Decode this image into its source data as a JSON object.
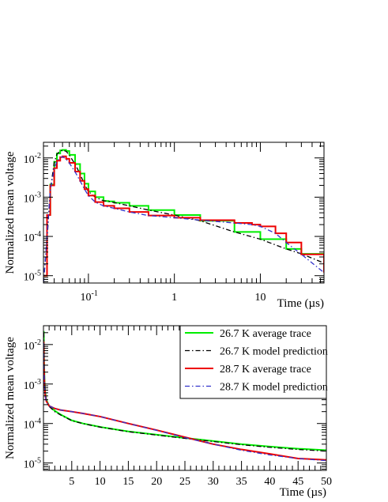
{
  "chart_data": [
    {
      "type": "line",
      "xscale": "log",
      "yscale": "log",
      "xlim": [
        0.03,
        55
      ],
      "ylim": [
        6.5e-06,
        0.025
      ],
      "xlabel": "Time (µs)",
      "ylabel": "Normalized mean voltage",
      "x_tick_labels": [
        "10^-1",
        "1",
        "10"
      ],
      "y_tick_labels": [
        "10^-5",
        "10^-4",
        "10^-3",
        "10^-2"
      ],
      "grid": false,
      "series": [
        {
          "color": "#00ee00",
          "style": "step",
          "x": [
            0.03,
            0.033,
            0.036,
            0.04,
            0.043,
            0.047,
            0.05,
            0.055,
            0.06,
            0.07,
            0.08,
            0.09,
            0.1,
            0.12,
            0.15,
            0.17,
            0.2,
            0.3,
            0.5,
            1,
            2,
            5,
            10,
            20,
            30,
            55
          ],
          "y": [
            1e-05,
            0.00035,
            0.0021,
            0.008,
            0.013,
            0.0155,
            0.016,
            0.015,
            0.012,
            0.007,
            0.004,
            0.0022,
            0.0014,
            0.001,
            0.0008,
            0.00078,
            0.00072,
            0.0006,
            0.00047,
            0.00035,
            0.00025,
            0.00013,
            8.5e-05,
            4.8e-05,
            3.6e-05,
            2.1e-05
          ]
        },
        {
          "color": "#000000",
          "style": "dash-dot",
          "x": [
            0.03,
            0.033,
            0.036,
            0.04,
            0.043,
            0.047,
            0.05,
            0.055,
            0.06,
            0.07,
            0.08,
            0.09,
            0.1,
            0.12,
            0.15,
            0.17,
            0.2,
            0.3,
            0.5,
            1,
            2,
            5,
            10,
            20,
            30,
            55
          ],
          "y": [
            6.5e-06,
            8e-05,
            0.0015,
            0.0075,
            0.0125,
            0.015,
            0.0158,
            0.0148,
            0.0118,
            0.0069,
            0.0039,
            0.0021,
            0.0014,
            0.001,
            0.00081,
            0.00079,
            0.00073,
            0.0006,
            0.00047,
            0.00035,
            0.00025,
            0.00013,
            8.5e-05,
            4.8e-05,
            3.6e-05,
            2.1e-05
          ]
        },
        {
          "color": "#ee0000",
          "style": "step",
          "x": [
            0.03,
            0.033,
            0.036,
            0.04,
            0.043,
            0.047,
            0.05,
            0.055,
            0.06,
            0.07,
            0.08,
            0.09,
            0.1,
            0.12,
            0.15,
            0.2,
            0.3,
            0.5,
            1,
            2,
            5,
            8,
            10,
            15,
            20,
            30,
            55
          ],
          "y": [
            1e-05,
            0.00035,
            0.002,
            0.0055,
            0.0085,
            0.0105,
            0.011,
            0.0095,
            0.0075,
            0.0045,
            0.0026,
            0.0016,
            0.0011,
            0.00075,
            0.0006,
            0.00052,
            0.00042,
            0.00034,
            0.0003,
            0.00026,
            0.00022,
            0.0002,
            0.00018,
            0.00012,
            7e-05,
            3.5e-05,
            1.2e-05
          ]
        },
        {
          "color": "#3333cc",
          "style": "dash-dot",
          "x": [
            0.03,
            0.033,
            0.036,
            0.04,
            0.043,
            0.047,
            0.05,
            0.055,
            0.06,
            0.07,
            0.08,
            0.09,
            0.1,
            0.12,
            0.15,
            0.2,
            0.3,
            0.5,
            1,
            2,
            5,
            8,
            10,
            15,
            20,
            30,
            55
          ],
          "y": [
            6.5e-06,
            0.0001,
            0.0015,
            0.0052,
            0.0082,
            0.0102,
            0.0108,
            0.0093,
            0.0074,
            0.0044,
            0.0026,
            0.0016,
            0.0011,
            0.00075,
            0.0006,
            0.00052,
            0.00042,
            0.00034,
            0.0003,
            0.00026,
            0.00022,
            0.0002,
            0.00018,
            0.00012,
            7e-05,
            3.5e-05,
            1.2e-05
          ]
        }
      ]
    },
    {
      "type": "line",
      "xscale": "linear",
      "yscale": "log",
      "xlim": [
        0,
        50
      ],
      "ylim": [
        6.5e-06,
        0.03
      ],
      "xlabel": "Time (µs)",
      "ylabel": "Normalized mean voltage",
      "x_tick_labels": [
        "5",
        "10",
        "15",
        "20",
        "25",
        "30",
        "35",
        "40",
        "45",
        "50"
      ],
      "y_tick_labels": [
        "10^-5",
        "10^-4",
        "10^-3",
        "10^-2"
      ],
      "grid": false,
      "legend_position": "top-right",
      "series": [
        {
          "name": "26.7 K average trace",
          "color": "#00ee00",
          "style": "solid",
          "x": [
            0.05,
            0.1,
            0.2,
            0.3,
            0.5,
            1,
            2,
            3,
            5,
            7,
            10,
            15,
            20,
            25,
            30,
            35,
            40,
            45,
            50
          ],
          "y": [
            0.022,
            0.004,
            0.0012,
            0.00065,
            0.0004,
            0.00028,
            0.00021,
            0.00017,
            0.00012,
            0.0001,
            8.2e-05,
            6.3e-05,
            5.2e-05,
            4.3e-05,
            3.6e-05,
            3e-05,
            2.6e-05,
            2.3e-05,
            2.1e-05
          ]
        },
        {
          "name": "26.7 K model prediction",
          "color": "#000000",
          "style": "dash-dot",
          "x": [
            0.05,
            0.1,
            0.2,
            0.3,
            0.5,
            1,
            2,
            3,
            5,
            7,
            10,
            15,
            20,
            25,
            30,
            35,
            40,
            45,
            50
          ],
          "y": [
            0.02,
            0.0038,
            0.00115,
            0.00062,
            0.00039,
            0.00027,
            0.0002,
            0.000165,
            0.000118,
            9.9e-05,
            8.1e-05,
            6.2e-05,
            5.1e-05,
            4.2e-05,
            3.5e-05,
            2.9e-05,
            2.5e-05,
            2.2e-05,
            2e-05
          ]
        },
        {
          "name": "28.7 K average trace",
          "color": "#ee0000",
          "style": "solid",
          "x": [
            0.05,
            0.1,
            0.2,
            0.3,
            0.5,
            1,
            2,
            3,
            5,
            7,
            10,
            15,
            20,
            25,
            30,
            35,
            40,
            45,
            50
          ],
          "y": [
            0.012,
            0.0025,
            0.0009,
            0.00055,
            0.00037,
            0.00028,
            0.00024,
            0.00022,
            0.0002,
            0.00018,
            0.00015,
            0.0001,
            6.8e-05,
            4.5e-05,
            3e-05,
            2.2e-05,
            1.7e-05,
            1.3e-05,
            1.2e-05
          ]
        },
        {
          "name": "28.7 K model prediction",
          "color": "#3333cc",
          "style": "dash-dot",
          "x": [
            0.05,
            0.1,
            0.2,
            0.3,
            0.5,
            1,
            2,
            3,
            5,
            7,
            10,
            15,
            20,
            25,
            30,
            35,
            40,
            45,
            50
          ],
          "y": [
            0.011,
            0.0024,
            0.00088,
            0.00054,
            0.00037,
            0.00028,
            0.00024,
            0.00022,
            0.0002,
            0.00018,
            0.00015,
            0.0001,
            6.7e-05,
            4.4e-05,
            3e-05,
            2.1e-05,
            1.6e-05,
            1.3e-05,
            1.15e-05
          ]
        }
      ]
    }
  ]
}
